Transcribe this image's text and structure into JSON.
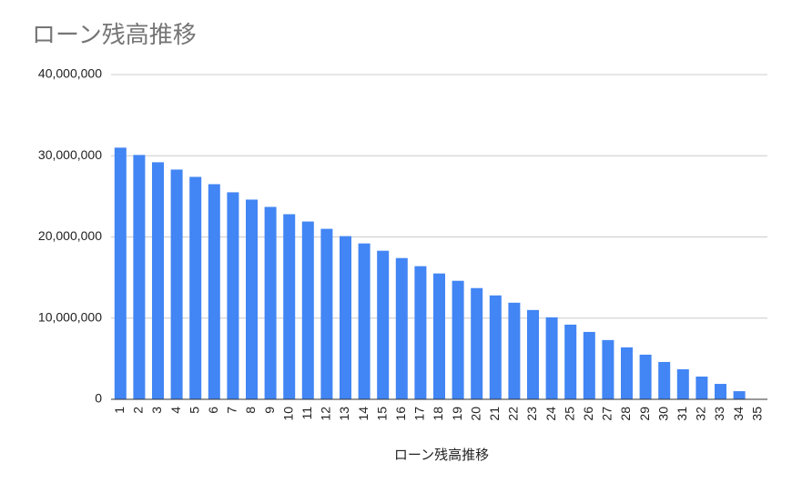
{
  "chart_data": {
    "type": "bar",
    "title": "ローン残高推移",
    "x_label": "ローン残高推移",
    "categories": [
      "1",
      "2",
      "3",
      "4",
      "5",
      "6",
      "7",
      "8",
      "9",
      "10",
      "11",
      "12",
      "13",
      "14",
      "15",
      "16",
      "17",
      "18",
      "19",
      "20",
      "21",
      "22",
      "23",
      "24",
      "25",
      "26",
      "27",
      "28",
      "29",
      "30",
      "31",
      "32",
      "33",
      "34",
      "35"
    ],
    "values": [
      31000000,
      30100000,
      29200000,
      28300000,
      27400000,
      26500000,
      25500000,
      24600000,
      23700000,
      22800000,
      21900000,
      21000000,
      20100000,
      19200000,
      18300000,
      17400000,
      16400000,
      15500000,
      14600000,
      13700000,
      12800000,
      11900000,
      11000000,
      10100000,
      9200000,
      8300000,
      7300000,
      6400000,
      5500000,
      4600000,
      3700000,
      2800000,
      1900000,
      1000000,
      0
    ],
    "color": "#4285f4",
    "ylim": [
      0,
      40000000
    ],
    "yticks": [
      0,
      {
        "value": 10000000,
        "label": "10,000,000"
      },
      {
        "value": 20000000,
        "label": "20,000,000"
      },
      {
        "value": 30000000,
        "label": "30,000,000"
      },
      {
        "value": 40000000,
        "label": "40,000,000"
      }
    ],
    "grid": true
  }
}
